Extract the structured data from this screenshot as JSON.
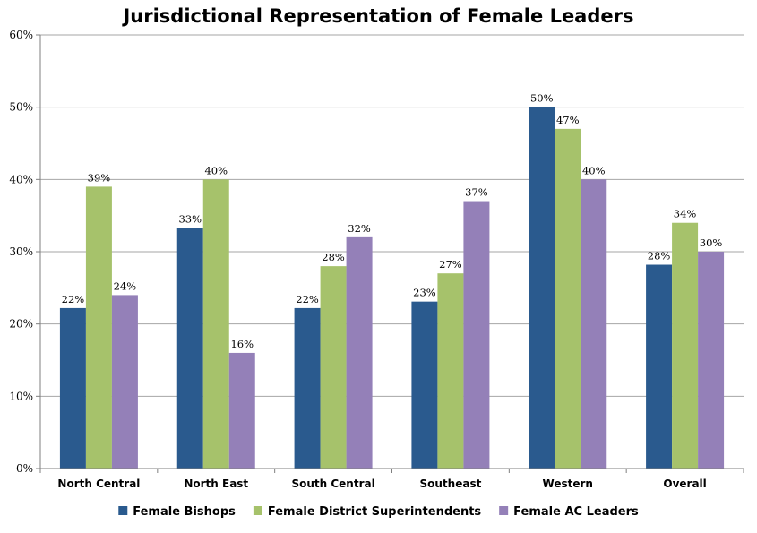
{
  "chart_data": {
    "type": "bar",
    "title": "Jurisdictional Representation of Female Leaders",
    "categories": [
      "North Central",
      "North East",
      "South Central",
      "Southeast",
      "Western",
      "Overall"
    ],
    "series": [
      {
        "name": "Female Bishops",
        "color": "#2a5a8e",
        "values": [
          22.2,
          33.3,
          22.2,
          23.1,
          50,
          28.2
        ],
        "labels": [
          "22%",
          "33%",
          "22%",
          "23%",
          "50%",
          "28%"
        ]
      },
      {
        "name": "Female District Superintendents",
        "color": "#a6c26b",
        "values": [
          39,
          40,
          28,
          27,
          47,
          34
        ],
        "labels": [
          "39%",
          "40%",
          "28%",
          "27%",
          "47%",
          "34%"
        ]
      },
      {
        "name": "Female AC Leaders",
        "color": "#9480b8",
        "values": [
          24,
          16,
          32,
          37,
          40,
          30
        ],
        "labels": [
          "24%",
          "16%",
          "32%",
          "37%",
          "40%",
          "30%"
        ]
      }
    ],
    "ylim": [
      0,
      60
    ],
    "yticks": [
      0,
      10,
      20,
      30,
      40,
      50,
      60
    ],
    "ytick_labels": [
      "0%",
      "10%",
      "20%",
      "30%",
      "40%",
      "50%",
      "60%"
    ],
    "xlabel": "",
    "ylabel": "",
    "grid": true,
    "legend_position": "bottom"
  }
}
